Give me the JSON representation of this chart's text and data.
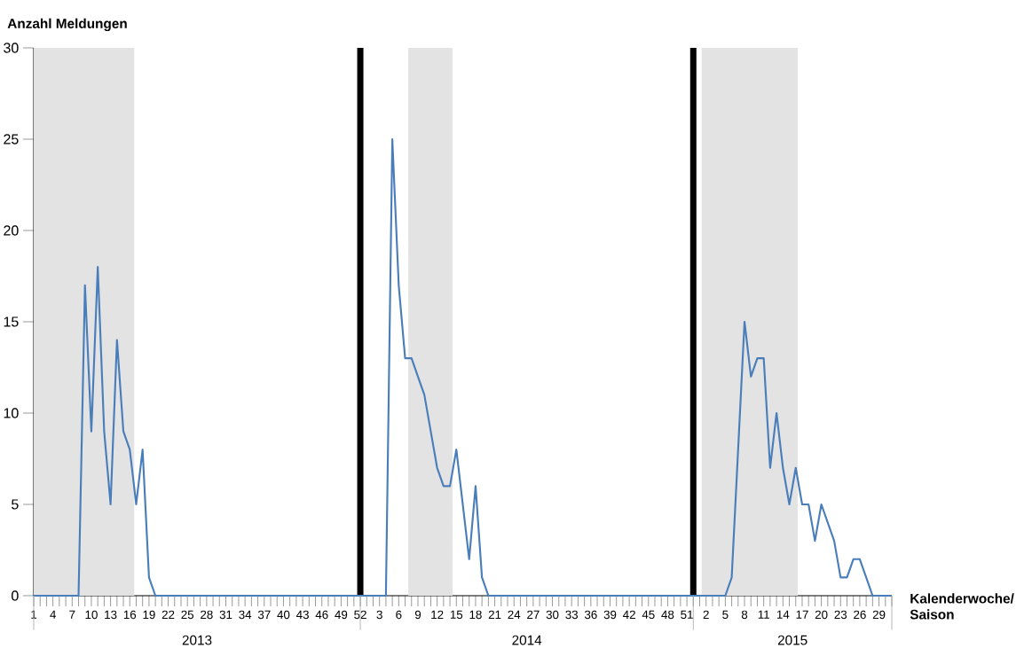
{
  "chart_data": {
    "type": "line",
    "ylabel": "Anzahl Meldungen",
    "xlabel": "Kalenderwoche/ Saison",
    "annotations": [
      "2013",
      "2014",
      "2015"
    ],
    "ylim": [
      0,
      30
    ],
    "yticks": [
      0,
      5,
      10,
      15,
      20,
      25,
      30
    ],
    "categories": [
      "1",
      null,
      null,
      "4",
      null,
      null,
      "7",
      null,
      null,
      "10",
      null,
      null,
      "13",
      null,
      null,
      "16",
      null,
      null,
      "19",
      null,
      null,
      "22",
      null,
      null,
      "25",
      null,
      null,
      "28",
      null,
      null,
      "31",
      null,
      null,
      "34",
      null,
      null,
      "37",
      null,
      null,
      "40",
      null,
      null,
      "43",
      null,
      null,
      "46",
      null,
      null,
      "49",
      null,
      null,
      "52",
      null,
      null,
      "3",
      null,
      null,
      "6",
      null,
      null,
      "9",
      null,
      null,
      "12",
      null,
      null,
      "15",
      null,
      null,
      "18",
      null,
      null,
      "21",
      null,
      null,
      "24",
      null,
      null,
      "27",
      null,
      null,
      "30",
      null,
      null,
      "33",
      null,
      null,
      "36",
      null,
      null,
      "39",
      null,
      null,
      "42",
      null,
      null,
      "45",
      null,
      null,
      "48",
      null,
      null,
      "51",
      null,
      null,
      "2",
      null,
      null,
      "5",
      null,
      null,
      "8",
      null,
      null,
      "11",
      null,
      null,
      "14",
      null,
      null,
      "17",
      null,
      null,
      "20",
      null,
      null,
      "23",
      null,
      null,
      "26",
      null,
      null,
      "29",
      null,
      null
    ],
    "color": "#4a7ebb",
    "values": [
      0,
      0,
      0,
      0,
      0,
      0,
      0,
      0,
      17,
      9,
      18,
      9,
      5,
      14,
      9,
      8,
      5,
      8,
      1,
      0,
      0,
      0,
      0,
      0,
      0,
      0,
      0,
      0,
      0,
      0,
      0,
      0,
      0,
      0,
      0,
      0,
      0,
      0,
      0,
      0,
      0,
      0,
      0,
      0,
      0,
      0,
      0,
      0,
      0,
      0,
      0,
      0,
      0,
      0,
      0,
      0,
      25,
      17,
      13,
      13,
      12,
      11,
      9,
      7,
      6,
      6,
      8,
      5,
      2,
      6,
      1,
      0,
      0,
      0,
      0,
      0,
      0,
      0,
      0,
      0,
      0,
      0,
      0,
      0,
      0,
      0,
      0,
      0,
      0,
      0,
      0,
      0,
      0,
      0,
      0,
      0,
      0,
      0,
      0,
      0,
      0,
      0,
      0,
      0,
      0,
      0,
      0,
      0,
      0,
      1,
      8,
      15,
      12,
      13,
      13,
      7,
      10,
      7,
      5,
      7,
      5,
      5,
      3,
      5,
      4,
      3,
      1,
      1,
      2,
      2,
      1,
      0,
      0,
      0,
      0
    ]
  }
}
